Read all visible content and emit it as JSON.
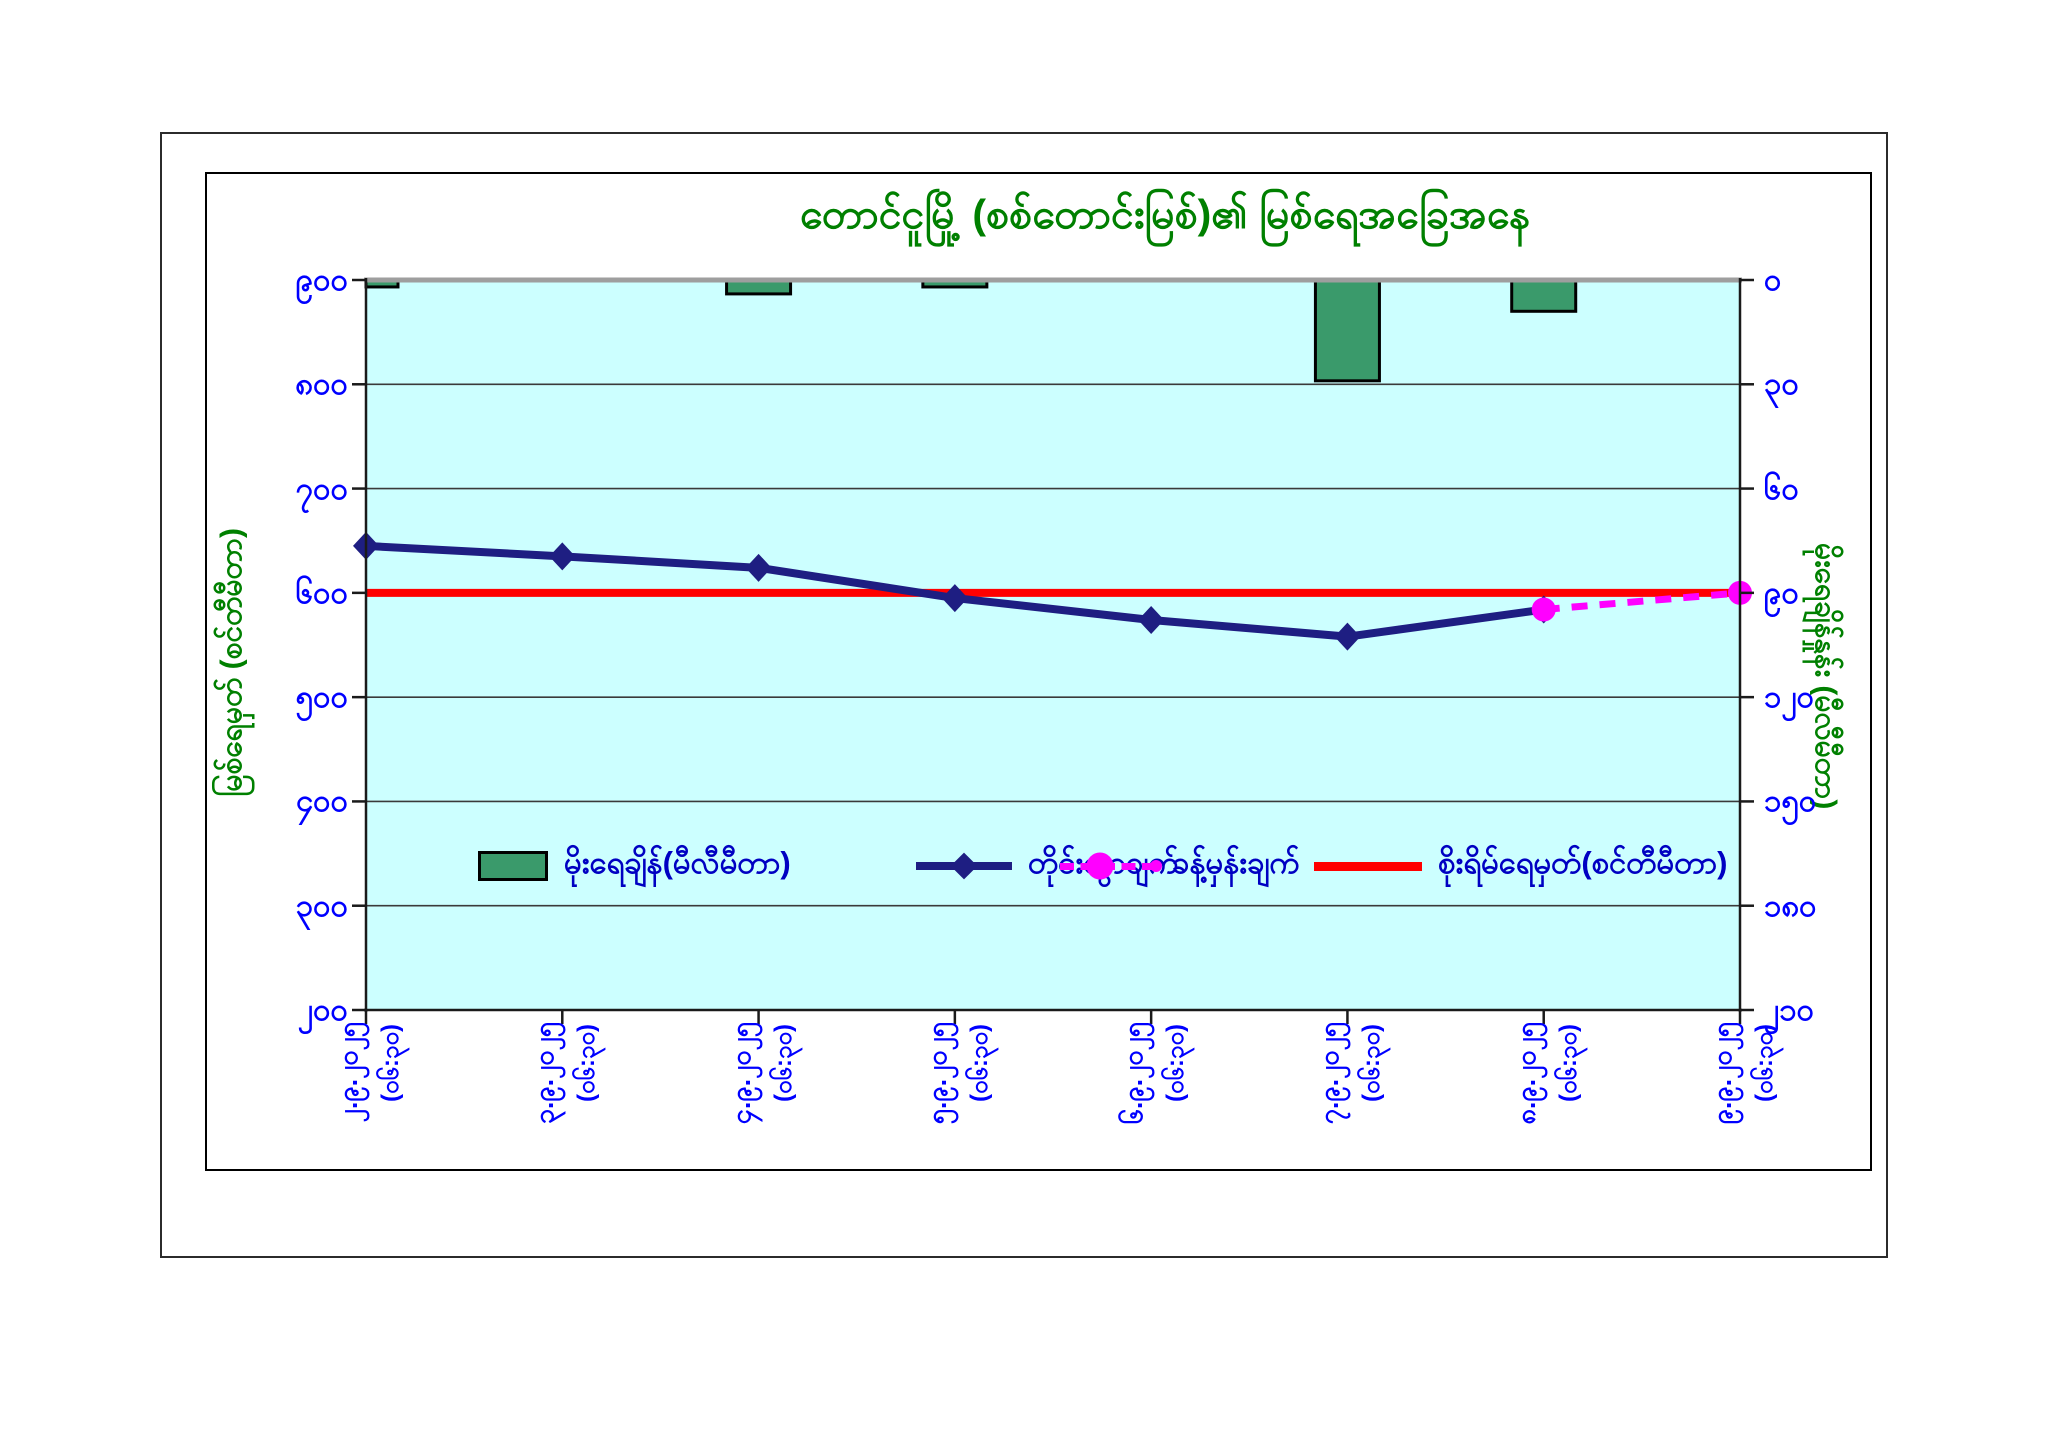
{
  "title": {
    "text": "တောင်ငူမြို့ (စစ်တောင်းမြစ်)၏ မြစ်ရေအခြေအနေ"
  },
  "legend": {
    "items": [
      {
        "label": "မိုးရေချိန်(မီလီမီတာ)",
        "swatch": "green-bar"
      },
      {
        "label": "တိုင်းထွာချက်",
        "swatch": "navy-line-diamond"
      },
      {
        "label": "ခန့်မှန်းချက်",
        "swatch": "magenta-dashed-circle"
      },
      {
        "label": "စိုးရိမ်ရေမှတ်(စင်တီမီတာ)",
        "swatch": "red-line"
      }
    ]
  },
  "chart_data": {
    "type": "bar",
    "subtype": "combo-bar-line-inverted-rain",
    "categories": [
      {
        "date": "၂.၉.၂၀၂၅",
        "time": "(၀၆:၃၀)"
      },
      {
        "date": "၃.၉.၂၀၂၅",
        "time": "(၀၆:၃၀)"
      },
      {
        "date": "၄.၉.၂၀၂၅",
        "time": "(၀၆:၃၀)"
      },
      {
        "date": "၅.၉.၂၀၂၅",
        "time": "(၀၆:၃၀)"
      },
      {
        "date": "၆.၉.၂၀၂၅",
        "time": "(၀၆:၃၀)"
      },
      {
        "date": "၇.၉.၂၀၂၅",
        "time": "(၀၆:၃၀)"
      },
      {
        "date": "၈.၉.၂၀၂၅",
        "time": "(၀၆:၃၀)"
      },
      {
        "date": "၉.၉.၂၀၂၅",
        "time": "(၀၆:၃၀)"
      }
    ],
    "series": [
      {
        "name": "မိုးရေချိန်(မီလီမီတာ)",
        "kind": "bar",
        "axis": "right",
        "values": [
          2,
          0,
          4,
          2,
          0,
          29,
          9,
          0
        ],
        "color": "#3A9A6B",
        "border": "#000000"
      },
      {
        "name": "တိုင်းထွာချက်",
        "kind": "line-diamond",
        "axis": "left",
        "values": [
          645,
          635,
          624,
          595,
          574,
          558,
          584,
          null
        ],
        "color": "#1E1E82"
      },
      {
        "name": "ခန့်မှန်းချက်",
        "kind": "dashed-line-circle",
        "axis": "left",
        "values": [
          null,
          null,
          null,
          null,
          null,
          null,
          584,
          600
        ],
        "color": "#FF00FF"
      },
      {
        "name": "စိုးရိမ်ရေမှတ်(စင်တီမီတာ)",
        "kind": "horizontal-line",
        "axis": "left",
        "value": 600,
        "color": "#FF0000"
      }
    ],
    "left_axis": {
      "title": "မြစ်ရေမှတ် (စင်တီမီတာ)",
      "min": 200,
      "max": 900,
      "step": 100,
      "tick_labels": [
        "၉၀၀",
        "၈၀၀",
        "၇၀၀",
        "၆၀၀",
        "၅၀၀",
        "၄၀၀",
        "၃၀၀",
        "၂၀၀"
      ],
      "tick_values": [
        900,
        800,
        700,
        600,
        500,
        400,
        300,
        200
      ],
      "label_color": "#0000FF"
    },
    "right_axis": {
      "title": "မိုးရေချိန်နှုန်း (မီလီမီတာ)",
      "min": 0,
      "max": 210,
      "step": 30,
      "inverted": true,
      "tick_labels": [
        "၀",
        "၃၀",
        "၆၀",
        "၉၀",
        "၁၂၀",
        "၁၅၀",
        "၁၈၀",
        "၂၁၀"
      ],
      "tick_values": [
        0,
        30,
        60,
        90,
        120,
        150,
        180,
        210
      ],
      "label_color": "#0000FF"
    },
    "colors": {
      "plot_background": "#CCFFFF",
      "gridline": "#3a3a3a",
      "axis_line": "#1a1a1a",
      "top_line": "#9e9e9e",
      "title_green": "#008000",
      "legend_text": "#0000C2"
    },
    "grid": true,
    "legend_position": "inside-middle"
  }
}
